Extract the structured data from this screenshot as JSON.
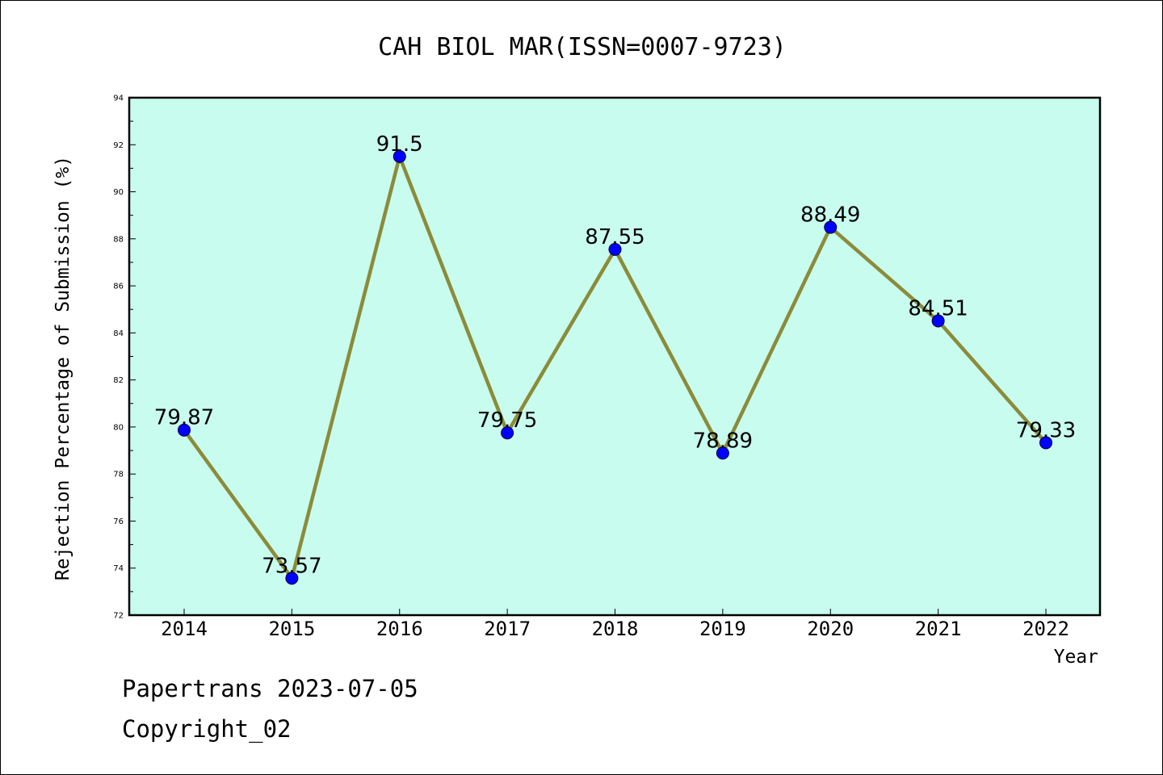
{
  "chart_data": {
    "type": "line",
    "title": "CAH BIOL MAR(ISSN=0007-9723)",
    "xlabel": "Year",
    "ylabel": "Rejection Percentage of Submission (%)",
    "categories": [
      "2014",
      "2015",
      "2016",
      "2017",
      "2018",
      "2019",
      "2020",
      "2021",
      "2022"
    ],
    "series": [
      {
        "values": [
          79.87,
          73.57,
          91.5,
          79.75,
          87.55,
          78.89,
          88.49,
          84.51,
          79.33
        ]
      }
    ],
    "data_labels": [
      "79.87",
      "73.57",
      "91.5",
      "79.75",
      "87.55",
      "78.89",
      "88.49",
      "84.51",
      "79.33"
    ],
    "ylim": [
      72,
      94
    ],
    "yticks": [
      "72",
      "74",
      "76",
      "78",
      "80",
      "82",
      "84",
      "86",
      "88",
      "90",
      "92",
      "94"
    ],
    "grid": false,
    "colors": {
      "plot_background": "#c8fcee",
      "line": "#8b8b3a",
      "marker": "#0000ff"
    }
  },
  "footer": {
    "line1": "Papertrans 2023-07-05",
    "line2": "Copyright_02"
  }
}
